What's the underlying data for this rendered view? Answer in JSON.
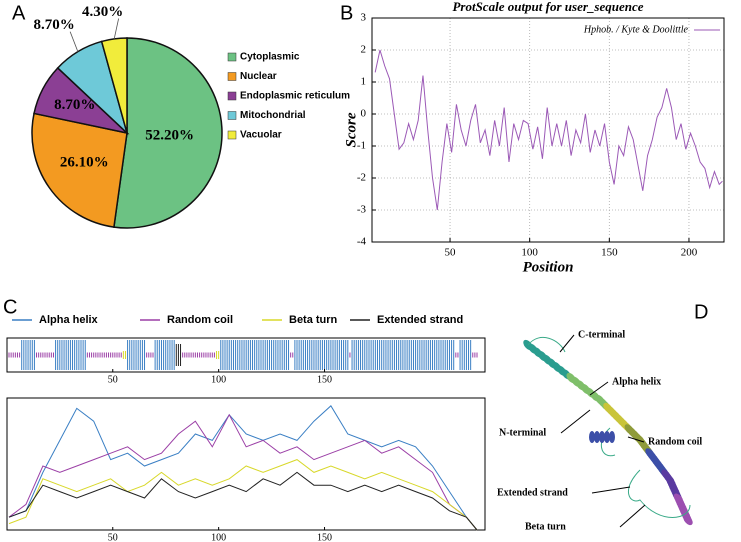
{
  "panels": [
    "A",
    "B",
    "C",
    "D"
  ],
  "chart_data": [
    {
      "type": "pie",
      "categories": [
        "Cytoplasmic",
        "Nuclear",
        "Endoplasmic reticulum",
        "Mitochondrial",
        "Vacuolar"
      ],
      "values": [
        52.2,
        26.1,
        8.7,
        8.7,
        4.3
      ],
      "value_labels": [
        "52.20%",
        "26.10%",
        "8.70%",
        "8.70%",
        "4.30%"
      ],
      "colors": [
        "#6cc283",
        "#f39a21",
        "#8b3f94",
        "#6ec9d8",
        "#f1ec3b"
      ]
    },
    {
      "type": "line",
      "title": "ProtScale output for user_sequence",
      "x_label": "Position",
      "y_label": "Score",
      "x": [
        3,
        6,
        9,
        12,
        15,
        18,
        21,
        24,
        27,
        30,
        33,
        36,
        39,
        42,
        45,
        48,
        51,
        54,
        57,
        60,
        63,
        66,
        69,
        72,
        75,
        78,
        81,
        84,
        87,
        90,
        93,
        96,
        99,
        102,
        105,
        108,
        111,
        114,
        117,
        120,
        123,
        126,
        129,
        132,
        135,
        138,
        141,
        144,
        147,
        150,
        153,
        156,
        159,
        162,
        165,
        168,
        171,
        174,
        177,
        180,
        183,
        186,
        189,
        192,
        195,
        198,
        201,
        204,
        207,
        210,
        213,
        216,
        219,
        221
      ],
      "series": [
        {
          "name": "Hphob. / Kyte & Doolittle",
          "color": "#9b59b6",
          "values": [
            1.3,
            2.0,
            1.5,
            1.1,
            0.0,
            -1.1,
            -0.9,
            -0.3,
            -0.8,
            -0.2,
            1.2,
            -0.5,
            -2.0,
            -3.0,
            -1.5,
            -0.3,
            -1.2,
            0.3,
            -0.5,
            -1.0,
            -0.2,
            0.3,
            -0.9,
            -0.5,
            -1.3,
            -0.2,
            -1.0,
            0.2,
            -1.5,
            -0.3,
            -0.8,
            -0.2,
            -0.3,
            -1.1,
            -0.4,
            -1.4,
            0.2,
            -1.0,
            -0.3,
            -1.0,
            -0.2,
            -1.3,
            -0.5,
            -0.9,
            0.0,
            -1.2,
            -0.5,
            -1.0,
            -0.3,
            -1.5,
            -2.2,
            -1.0,
            -1.3,
            -0.4,
            -0.8,
            -1.6,
            -2.4,
            -1.3,
            -0.8,
            -0.1,
            0.2,
            0.8,
            0.2,
            -0.8,
            -0.3,
            -1.1,
            -0.6,
            -1.0,
            -1.5,
            -1.7,
            -2.3,
            -1.8,
            -2.2,
            -2.1
          ]
        }
      ],
      "xlim": [
        1,
        222
      ],
      "xticks": [
        50,
        100,
        150,
        200
      ],
      "ylim": [
        -4,
        3
      ],
      "yticks": [
        -4,
        -3,
        -2,
        -1,
        0,
        1,
        2,
        3
      ],
      "grid": true
    },
    {
      "type": "secondary",
      "x": [
        1,
        9,
        17,
        25,
        33,
        41,
        49,
        57,
        65,
        73,
        81,
        89,
        97,
        105,
        113,
        121,
        129,
        137,
        145,
        153,
        161,
        169,
        177,
        185,
        193,
        201,
        209,
        217,
        222
      ],
      "xlim": [
        1,
        222
      ],
      "xticks": [
        50,
        100,
        150
      ],
      "ylim": [
        0,
        1
      ],
      "series": [
        {
          "name": "Alpha helix",
          "color": "#3a7fc4",
          "segments": [
            [
              7,
              13
            ],
            [
              23,
              37
            ],
            [
              57,
              65
            ],
            [
              70,
              79
            ],
            [
              101,
              133
            ],
            [
              136,
              161
            ],
            [
              163,
              211
            ],
            [
              214,
              219
            ]
          ],
          "values": [
            0.1,
            0.15,
            0.45,
            0.7,
            0.95,
            0.85,
            0.55,
            0.6,
            0.5,
            0.55,
            0.6,
            0.75,
            0.7,
            0.9,
            0.75,
            0.7,
            0.75,
            0.7,
            0.85,
            0.97,
            0.75,
            0.7,
            0.65,
            0.7,
            0.65,
            0.5,
            0.3,
            0.1,
            0.0
          ]
        },
        {
          "name": "Random coil",
          "color": "#9b3fa6",
          "segments": [
            [
              1,
              6
            ],
            [
              14,
              22
            ],
            [
              38,
              54
            ],
            [
              66,
              69
            ],
            [
              83,
              98
            ],
            [
              134,
              135
            ],
            [
              162,
              162
            ],
            [
              212,
              213
            ],
            [
              220,
              222
            ]
          ],
          "values": [
            0.1,
            0.2,
            0.5,
            0.45,
            0.5,
            0.55,
            0.6,
            0.65,
            0.55,
            0.6,
            0.75,
            0.85,
            0.65,
            0.9,
            0.65,
            0.7,
            0.6,
            0.65,
            0.55,
            0.6,
            0.65,
            0.7,
            0.6,
            0.65,
            0.55,
            0.45,
            0.2,
            0.1,
            0.0
          ]
        },
        {
          "name": "Beta turn",
          "color": "#d8d82a",
          "segments": [
            [
              55,
              56
            ],
            [
              99,
              100
            ]
          ],
          "values": [
            0.05,
            0.1,
            0.4,
            0.35,
            0.3,
            0.35,
            0.4,
            0.3,
            0.35,
            0.45,
            0.35,
            0.4,
            0.35,
            0.4,
            0.5,
            0.45,
            0.5,
            0.55,
            0.45,
            0.5,
            0.45,
            0.4,
            0.45,
            0.4,
            0.35,
            0.3,
            0.2,
            0.1,
            0.0
          ]
        },
        {
          "name": "Extended strand",
          "color": "#222222",
          "segments": [
            [
              80,
              82
            ]
          ],
          "values": [
            0.1,
            0.15,
            0.35,
            0.3,
            0.25,
            0.3,
            0.35,
            0.3,
            0.25,
            0.4,
            0.3,
            0.25,
            0.3,
            0.35,
            0.3,
            0.4,
            0.35,
            0.45,
            0.35,
            0.35,
            0.3,
            0.35,
            0.3,
            0.35,
            0.3,
            0.25,
            0.15,
            0.1,
            0.0
          ]
        }
      ]
    }
  ],
  "structure_labels": [
    "C-terminal",
    "Alpha helix",
    "N-terminal",
    "Random coil",
    "Extended strand",
    "Beta turn"
  ]
}
